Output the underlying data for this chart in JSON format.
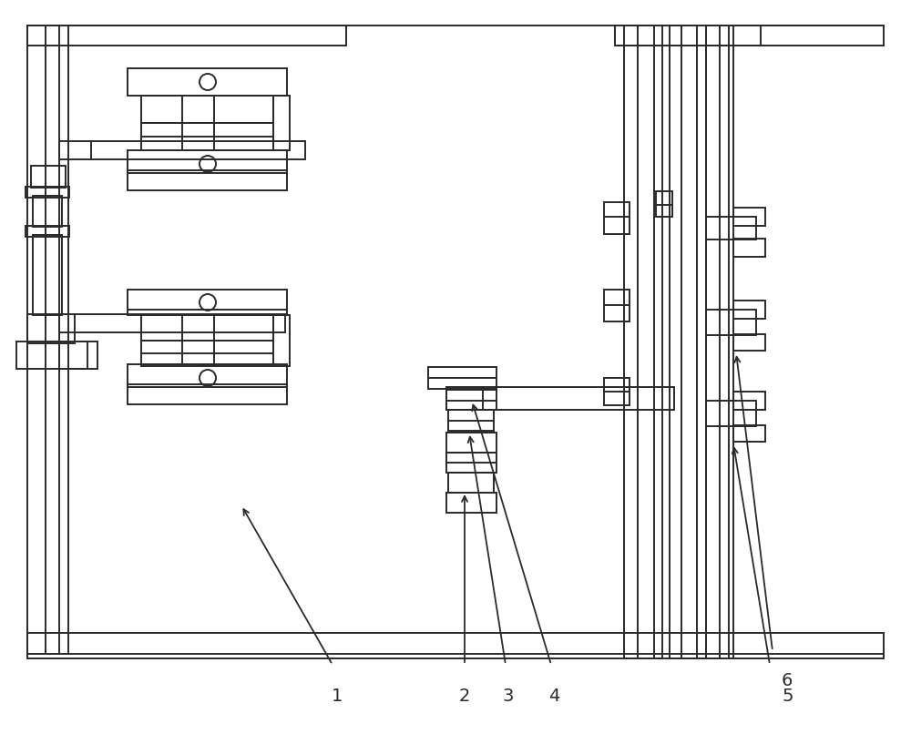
{
  "bg_color": "#ffffff",
  "line_color": "#2a2a2a",
  "lw": 1.4,
  "fig_width": 10.0,
  "fig_height": 8.06
}
